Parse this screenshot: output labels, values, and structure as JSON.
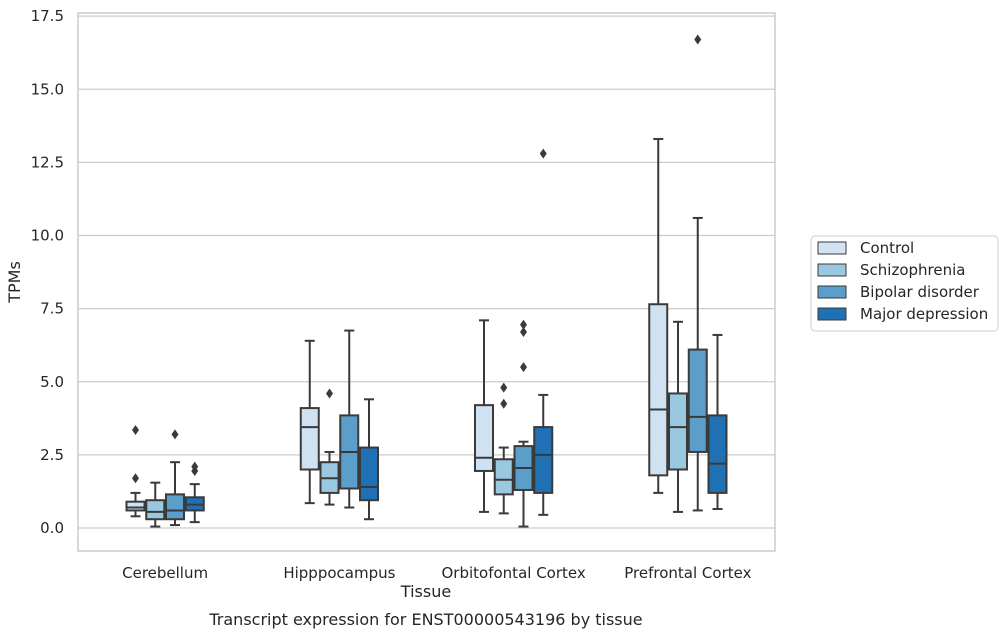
{
  "chart_data": {
    "type": "box",
    "xlabel": "Tissue",
    "ylabel": "TPMs",
    "caption": "Transcript expression for ENST00000543196 by tissue",
    "ylim": [
      -0.8,
      17.6
    ],
    "yticks": [
      "0.0",
      "2.5",
      "5.0",
      "7.5",
      "10.0",
      "12.5",
      "15.0",
      "17.5"
    ],
    "ytick_values": [
      0,
      2.5,
      5,
      7.5,
      10,
      12.5,
      15,
      17.5
    ],
    "grid": "horizontal",
    "legend_position": "right",
    "categories": [
      "Cerebellum",
      "Hipppocampus",
      "Orbitofontal Cortex",
      "Prefrontal Cortex"
    ],
    "series": [
      {
        "name": "Control",
        "color": "#d0e1f2",
        "boxes": [
          {
            "whislo": 0.4,
            "q1": 0.6,
            "med": 0.7,
            "q3": 0.9,
            "whishi": 1.2,
            "fliers": [
              1.7,
              3.35
            ]
          },
          {
            "whislo": 0.85,
            "q1": 2.0,
            "med": 3.45,
            "q3": 4.1,
            "whishi": 6.4,
            "fliers": []
          },
          {
            "whislo": 0.55,
            "q1": 1.95,
            "med": 2.4,
            "q3": 4.2,
            "whishi": 7.1,
            "fliers": []
          },
          {
            "whislo": 1.2,
            "q1": 1.8,
            "med": 4.05,
            "q3": 7.65,
            "whishi": 13.3,
            "fliers": []
          }
        ]
      },
      {
        "name": "Schizophrenia",
        "color": "#9ac8e0",
        "boxes": [
          {
            "whislo": 0.05,
            "q1": 0.3,
            "med": 0.55,
            "q3": 0.95,
            "whishi": 1.55,
            "fliers": []
          },
          {
            "whislo": 0.8,
            "q1": 1.2,
            "med": 1.7,
            "q3": 2.25,
            "whishi": 2.6,
            "fliers": [
              4.6
            ]
          },
          {
            "whislo": 0.5,
            "q1": 1.15,
            "med": 1.65,
            "q3": 2.35,
            "whishi": 2.75,
            "fliers": [
              4.25,
              4.8
            ]
          },
          {
            "whislo": 0.55,
            "q1": 2.0,
            "med": 3.45,
            "q3": 4.6,
            "whishi": 7.05,
            "fliers": []
          }
        ]
      },
      {
        "name": "Bipolar disorder",
        "color": "#5a9ec9",
        "boxes": [
          {
            "whislo": 0.1,
            "q1": 0.3,
            "med": 0.6,
            "q3": 1.15,
            "whishi": 2.25,
            "fliers": [
              3.2
            ]
          },
          {
            "whislo": 0.7,
            "q1": 1.35,
            "med": 2.6,
            "q3": 3.85,
            "whishi": 6.75,
            "fliers": []
          },
          {
            "whislo": 0.05,
            "q1": 1.3,
            "med": 2.05,
            "q3": 2.8,
            "whishi": 2.95,
            "fliers": [
              5.5,
              6.7,
              6.95
            ]
          },
          {
            "whislo": 0.6,
            "q1": 2.6,
            "med": 3.8,
            "q3": 6.1,
            "whishi": 10.6,
            "fliers": [
              16.7
            ]
          }
        ]
      },
      {
        "name": "Major depression",
        "color": "#2070b4",
        "boxes": [
          {
            "whislo": 0.2,
            "q1": 0.6,
            "med": 0.8,
            "q3": 1.05,
            "whishi": 1.5,
            "fliers": [
              1.95,
              2.1
            ]
          },
          {
            "whislo": 0.3,
            "q1": 0.95,
            "med": 1.4,
            "q3": 2.75,
            "whishi": 4.4,
            "fliers": []
          },
          {
            "whislo": 0.45,
            "q1": 1.2,
            "med": 2.5,
            "q3": 3.45,
            "whishi": 4.55,
            "fliers": [
              12.8
            ]
          },
          {
            "whislo": 0.65,
            "q1": 1.2,
            "med": 2.2,
            "q3": 3.85,
            "whishi": 6.6,
            "fliers": []
          }
        ]
      }
    ]
  }
}
